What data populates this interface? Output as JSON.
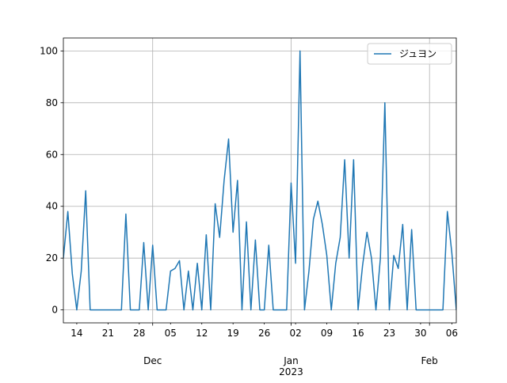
{
  "chart_data": {
    "type": "line",
    "x": [
      "2022-11-11",
      "2022-11-12",
      "2022-11-13",
      "2022-11-14",
      "2022-11-15",
      "2022-11-16",
      "2022-11-17",
      "2022-11-18",
      "2022-11-19",
      "2022-11-20",
      "2022-11-21",
      "2022-11-22",
      "2022-11-23",
      "2022-11-24",
      "2022-11-25",
      "2022-11-26",
      "2022-11-27",
      "2022-11-28",
      "2022-11-29",
      "2022-11-30",
      "2022-12-01",
      "2022-12-02",
      "2022-12-03",
      "2022-12-04",
      "2022-12-05",
      "2022-12-06",
      "2022-12-07",
      "2022-12-08",
      "2022-12-09",
      "2022-12-10",
      "2022-12-11",
      "2022-12-12",
      "2022-12-13",
      "2022-12-14",
      "2022-12-15",
      "2022-12-16",
      "2022-12-17",
      "2022-12-18",
      "2022-12-19",
      "2022-12-20",
      "2022-12-21",
      "2022-12-22",
      "2022-12-23",
      "2022-12-24",
      "2022-12-25",
      "2022-12-26",
      "2022-12-27",
      "2022-12-28",
      "2022-12-29",
      "2022-12-30",
      "2022-12-31",
      "2023-01-01",
      "2023-01-02",
      "2023-01-03",
      "2023-01-04",
      "2023-01-05",
      "2023-01-06",
      "2023-01-07",
      "2023-01-08",
      "2023-01-09",
      "2023-01-10",
      "2023-01-11",
      "2023-01-12",
      "2023-01-13",
      "2023-01-14",
      "2023-01-15",
      "2023-01-16",
      "2023-01-17",
      "2023-01-18",
      "2023-01-19",
      "2023-01-20",
      "2023-01-21",
      "2023-01-22",
      "2023-01-23",
      "2023-01-24",
      "2023-01-25",
      "2023-01-26",
      "2023-01-27",
      "2023-01-28",
      "2023-01-29",
      "2023-01-30",
      "2023-01-31",
      "2023-02-01",
      "2023-02-02",
      "2023-02-03",
      "2023-02-04",
      "2023-02-05",
      "2023-02-06",
      "2023-02-07"
    ],
    "series": [
      {
        "name": "ジュヨン",
        "color": "#1f77b4",
        "values": [
          20,
          38,
          14,
          0,
          15,
          46,
          0,
          0,
          0,
          0,
          0,
          0,
          0,
          0,
          37,
          0,
          0,
          0,
          26,
          0,
          25,
          0,
          0,
          0,
          15,
          16,
          19,
          0,
          15,
          0,
          18,
          0,
          29,
          0,
          41,
          28,
          50,
          66,
          30,
          50,
          0,
          34,
          0,
          27,
          0,
          0,
          25,
          0,
          0,
          0,
          0,
          49,
          18,
          100,
          0,
          15,
          35,
          42,
          33,
          21,
          0,
          18,
          28,
          58,
          20,
          58,
          0,
          17,
          30,
          20,
          0,
          20,
          80,
          0,
          21,
          16,
          33,
          0,
          31,
          0,
          0,
          0,
          0,
          0,
          0,
          0,
          38,
          22,
          0
        ]
      }
    ],
    "xlim": [
      "2022-11-11",
      "2023-02-07"
    ],
    "xticks": [
      {
        "value": "2022-11-14",
        "label": "14"
      },
      {
        "value": "2022-11-21",
        "label": "21"
      },
      {
        "value": "2022-11-28",
        "label": "28"
      },
      {
        "value": "2022-12-05",
        "label": "05"
      },
      {
        "value": "2022-12-12",
        "label": "12"
      },
      {
        "value": "2022-12-19",
        "label": "19"
      },
      {
        "value": "2022-12-26",
        "label": "26"
      },
      {
        "value": "2023-01-02",
        "label": "02"
      },
      {
        "value": "2023-01-09",
        "label": "09"
      },
      {
        "value": "2023-01-16",
        "label": "16"
      },
      {
        "value": "2023-01-23",
        "label": "23"
      },
      {
        "value": "2023-01-30",
        "label": "30"
      },
      {
        "value": "2023-02-06",
        "label": "06"
      }
    ],
    "xmajorticks": [
      {
        "value": "2022-12-01",
        "label": "Dec"
      },
      {
        "value": "2023-01-01",
        "label": "Jan\n2023"
      },
      {
        "value": "2023-02-01",
        "label": "Feb"
      }
    ],
    "ylim": [
      -5,
      105
    ],
    "yticks": [
      0,
      20,
      40,
      60,
      80,
      100
    ],
    "grid": true,
    "legend": "upper right"
  }
}
